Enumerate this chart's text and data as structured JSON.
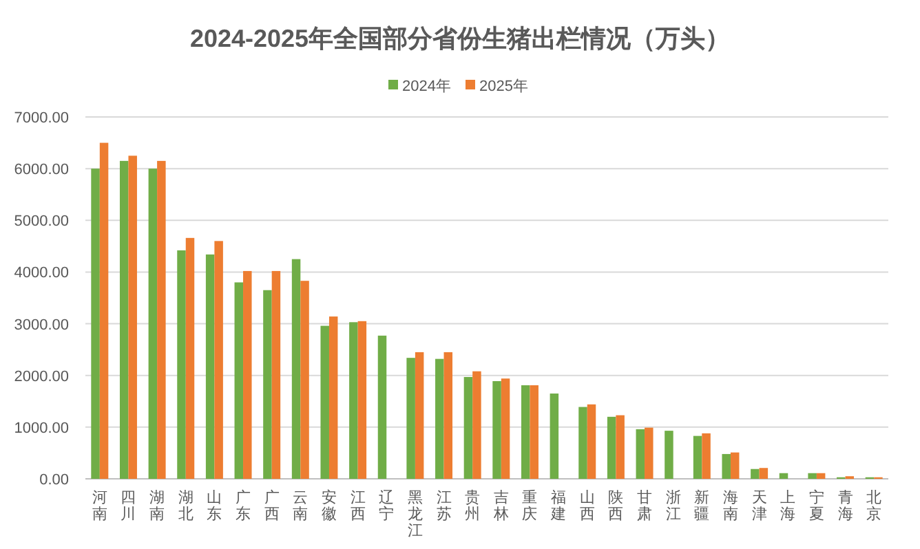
{
  "chart_data": {
    "type": "bar",
    "title": "2024-2025年全国部分省份生猪出栏情况（万头）",
    "categories": [
      "河南",
      "四川",
      "湖南",
      "湖北",
      "山东",
      "广东",
      "广西",
      "云南",
      "安徽",
      "江西",
      "辽宁",
      "黑龙江",
      "江苏",
      "贵州",
      "吉林",
      "重庆",
      "福建",
      "山西",
      "陕西",
      "甘肃",
      "浙江",
      "新疆",
      "海南",
      "天津",
      "上海",
      "宁夏",
      "青海",
      "北京"
    ],
    "series": [
      {
        "name": "2024年",
        "color": "#70ad47",
        "values": [
          6000,
          6150,
          6000,
          4420,
          4340,
          3800,
          3650,
          4250,
          2960,
          3030,
          2770,
          2340,
          2320,
          1970,
          1890,
          1810,
          1650,
          1390,
          1200,
          960,
          930,
          830,
          480,
          190,
          110,
          110,
          30,
          30
        ]
      },
      {
        "name": "2025年",
        "color": "#ed7d31",
        "values": [
          6500,
          6250,
          6150,
          4660,
          4600,
          4020,
          4020,
          3830,
          3140,
          3050,
          null,
          2450,
          2450,
          2080,
          1940,
          1810,
          null,
          1440,
          1230,
          990,
          null,
          880,
          510,
          210,
          null,
          110,
          50,
          30
        ]
      }
    ],
    "ylim": [
      0,
      7000
    ],
    "yticks": [
      {
        "value": 0,
        "label": "0.00"
      },
      {
        "value": 1000,
        "label": "1000.00"
      },
      {
        "value": 2000,
        "label": "2000.00"
      },
      {
        "value": 3000,
        "label": "3000.00"
      },
      {
        "value": 4000,
        "label": "4000.00"
      },
      {
        "value": 5000,
        "label": "5000.00"
      },
      {
        "value": 6000,
        "label": "6000.00"
      },
      {
        "value": 7000,
        "label": "7000.00"
      }
    ],
    "grid": "y",
    "legend": "top"
  }
}
